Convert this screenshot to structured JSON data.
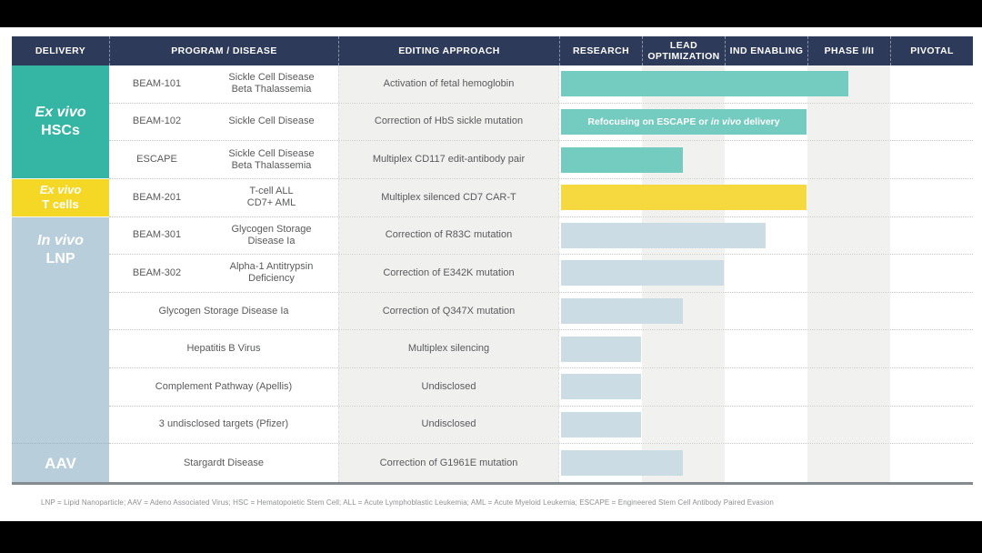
{
  "header": {
    "columns": [
      "DELIVERY",
      "PROGRAM / DISEASE",
      "EDITING APPROACH",
      "RESEARCH",
      "LEAD OPTIMIZATION",
      "IND ENABLING",
      "PHASE I/II",
      "PIVOTAL"
    ]
  },
  "colors": {
    "header_bg": "#2e3a5a",
    "column_stripe": "#f1f1f0",
    "editing_col_bg": "#f0f0ef",
    "delivery_teal": "#35b5a4",
    "delivery_yellow": "#f5d826",
    "delivery_blue": "#b9cedb"
  },
  "bar_colors": {
    "teal": "#74cbc0",
    "yellow": "#f5d93e",
    "blue": "#ccdce4"
  },
  "delivery_groups": [
    {
      "line1": "Ex vivo",
      "line2": "HSCs",
      "color": "#35b5a4",
      "rows": 3
    },
    {
      "line1": "Ex vivo",
      "line2": "T cells",
      "color": "#f5d826",
      "rows": 1
    },
    {
      "line1": "In vivo",
      "line2": "LNP",
      "color": "#b9cedb",
      "rows": 6
    },
    {
      "line1": "",
      "line2": "AAV",
      "color": "#b9cedb",
      "rows": 1
    }
  ],
  "rows": [
    {
      "program": "BEAM-101",
      "disease_line1": "Sickle Cell Disease",
      "disease_line2": "Beta Thalassemia",
      "editing": "Activation of fetal hemoglobin",
      "bar": {
        "color": "teal",
        "extent": 3.5
      }
    },
    {
      "program": "BEAM-102",
      "disease_line1": "Sickle Cell Disease",
      "disease_line2": "",
      "editing": "Correction of HbS sickle mutation",
      "bar": {
        "color": "teal",
        "extent": 3.0,
        "label_pre": "Refocusing on ESCAPE or ",
        "label_italic": "in vivo",
        "label_post": " delivery"
      }
    },
    {
      "program": "ESCAPE",
      "disease_line1": "Sickle Cell Disease",
      "disease_line2": "Beta Thalassemia",
      "editing": "Multiplex CD117 edit-antibody pair",
      "bar": {
        "color": "teal",
        "extent": 1.5
      }
    },
    {
      "program": "BEAM-201",
      "disease_line1": "T-cell ALL",
      "disease_line2": "CD7+ AML",
      "editing": "Multiplex silenced CD7 CAR-T",
      "bar": {
        "color": "yellow",
        "extent": 3.0
      }
    },
    {
      "program": "BEAM-301",
      "disease_line1": "Glycogen Storage",
      "disease_line2": "Disease Ia",
      "editing": "Correction of R83C mutation",
      "bar": {
        "color": "blue",
        "extent": 2.5
      }
    },
    {
      "program": "BEAM-302",
      "disease_line1": "Alpha-1 Antitrypsin",
      "disease_line2": "Deficiency",
      "editing": "Correction of E342K mutation",
      "bar": {
        "color": "blue",
        "extent": 2.0
      }
    },
    {
      "program": "",
      "disease_wide": "Glycogen Storage Disease Ia",
      "editing": "Correction of Q347X mutation",
      "bar": {
        "color": "blue",
        "extent": 1.5
      }
    },
    {
      "program": "",
      "disease_wide": "Hepatitis B Virus",
      "editing": "Multiplex silencing",
      "bar": {
        "color": "blue",
        "extent": 1.0
      }
    },
    {
      "program": "",
      "disease_wide": "Complement Pathway (Apellis)",
      "editing": "Undisclosed",
      "bar": {
        "color": "blue",
        "extent": 1.0
      }
    },
    {
      "program": "",
      "disease_wide": "3 undisclosed targets (Pfizer)",
      "editing": "Undisclosed",
      "bar": {
        "color": "blue",
        "extent": 1.0
      }
    },
    {
      "program": "",
      "disease_wide": "Stargardt Disease",
      "editing": "Correction of G1961E mutation",
      "bar": {
        "color": "blue",
        "extent": 1.5
      }
    }
  ],
  "footnote": "LNP = Lipid Nanoparticle; AAV = Adeno Associated Virus; HSC = Hematopoietic Stem Cell; ALL = Acute Lymphoblastic Leukemia; AML = Acute Myeloid Leukemia; ESCAPE = Engineered Stem Cell Antibody Paired Evasion",
  "chart_data": {
    "type": "table",
    "columns": [
      "DELIVERY",
      "PROGRAM / DISEASE",
      "EDITING APPROACH",
      "RESEARCH",
      "LEAD OPTIMIZATION",
      "IND ENABLING",
      "PHASE I/II",
      "PIVOTAL"
    ],
    "stages": [
      "Research",
      "Lead Optimization",
      "IND Enabling",
      "Phase I/II",
      "Pivotal"
    ],
    "stage_scale_max": 5,
    "rows": [
      {
        "delivery": "Ex vivo HSCs",
        "program": "BEAM-101",
        "disease": "Sickle Cell Disease / Beta Thalassemia",
        "editing_approach": "Activation of fetal hemoglobin",
        "stage_progress": 3.5,
        "bar_color": "teal"
      },
      {
        "delivery": "Ex vivo HSCs",
        "program": "BEAM-102",
        "disease": "Sickle Cell Disease",
        "editing_approach": "Correction of HbS sickle mutation",
        "stage_progress": 3.0,
        "bar_color": "teal",
        "bar_note": "Refocusing on ESCAPE or in vivo delivery"
      },
      {
        "delivery": "Ex vivo HSCs",
        "program": "ESCAPE",
        "disease": "Sickle Cell Disease / Beta Thalassemia",
        "editing_approach": "Multiplex CD117 edit-antibody pair",
        "stage_progress": 1.5,
        "bar_color": "teal"
      },
      {
        "delivery": "Ex vivo T cells",
        "program": "BEAM-201",
        "disease": "T-cell ALL / CD7+ AML",
        "editing_approach": "Multiplex silenced CD7 CAR-T",
        "stage_progress": 3.0,
        "bar_color": "yellow"
      },
      {
        "delivery": "In vivo LNP",
        "program": "BEAM-301",
        "disease": "Glycogen Storage Disease Ia",
        "editing_approach": "Correction of R83C mutation",
        "stage_progress": 2.5,
        "bar_color": "blue"
      },
      {
        "delivery": "In vivo LNP",
        "program": "BEAM-302",
        "disease": "Alpha-1 Antitrypsin Deficiency",
        "editing_approach": "Correction of E342K mutation",
        "stage_progress": 2.0,
        "bar_color": "blue"
      },
      {
        "delivery": "In vivo LNP",
        "program": "",
        "disease": "Glycogen Storage Disease Ia",
        "editing_approach": "Correction of Q347X mutation",
        "stage_progress": 1.5,
        "bar_color": "blue"
      },
      {
        "delivery": "In vivo LNP",
        "program": "",
        "disease": "Hepatitis B Virus",
        "editing_approach": "Multiplex silencing",
        "stage_progress": 1.0,
        "bar_color": "blue"
      },
      {
        "delivery": "In vivo LNP",
        "program": "",
        "disease": "Complement Pathway (Apellis)",
        "editing_approach": "Undisclosed",
        "stage_progress": 1.0,
        "bar_color": "blue"
      },
      {
        "delivery": "In vivo LNP",
        "program": "",
        "disease": "3 undisclosed targets (Pfizer)",
        "editing_approach": "Undisclosed",
        "stage_progress": 1.0,
        "bar_color": "blue"
      },
      {
        "delivery": "AAV",
        "program": "",
        "disease": "Stargardt Disease",
        "editing_approach": "Correction of G1961E mutation",
        "stage_progress": 1.5,
        "bar_color": "blue"
      }
    ]
  }
}
